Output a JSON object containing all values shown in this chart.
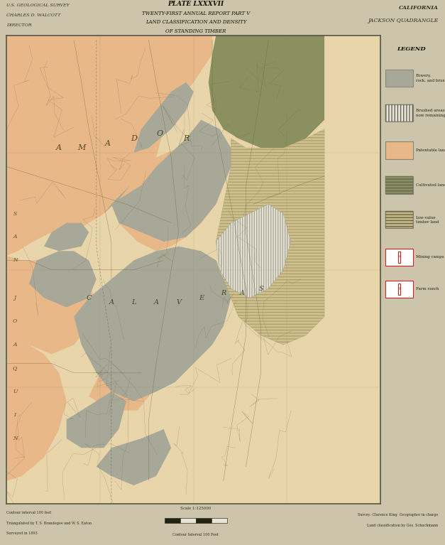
{
  "title_line1": "PLATE LXXXVII",
  "title_line2": "TWENTY-FIRST ANNUAL REPORT PART V",
  "title_line3": "LAND CLASSIFICATION AND DENSITY",
  "title_line4": "OF STANDING TIMBER",
  "upper_left_line1": "U.S. GEOLOGICAL SURVEY",
  "upper_left_line2": "CHARLES D. WALCOTT",
  "upper_left_line3": "DIRECTOR",
  "upper_right_line1": "CALIFORNIA",
  "upper_right_line2": "JACKSON QUADRANGLE",
  "legend_title": "LEGEND",
  "page_bg": "#cdc4ac",
  "map_bg": "#e8d5aa",
  "header_bg": "#e8e0cc",
  "border_color": "#555544",
  "salmon_color": "#e8b888",
  "gray_color": "#a8a898",
  "olive_color": "#8a9060",
  "hatch_tan_color": "#c8b880",
  "white_stripe_color": "#e8e4d8",
  "legend_bg": "#e8e2cc",
  "scale_text": "Scale 1:125000",
  "bottom_left_text1": "Contour Interval 100 feet",
  "bottom_left_text2": "Triangulated by T. S. Brandegee and W. S. Eaton",
  "bottom_left_text3": "Surveyed in 1893",
  "bottom_right_text1": "Survey: Clarence King  Geographer in charge",
  "bottom_right_text2": "Land classification by Geo. Schuchmann"
}
